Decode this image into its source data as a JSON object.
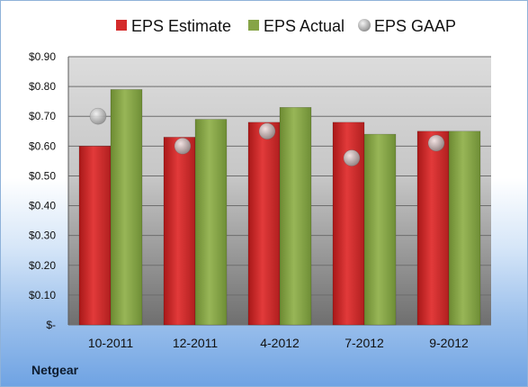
{
  "company": "Netgear",
  "chart_data": {
    "type": "bar",
    "title": "",
    "xlabel": "",
    "ylabel": "",
    "categories": [
      "10-2011",
      "12-2011",
      "4-2012",
      "7-2012",
      "9-2012"
    ],
    "series": [
      {
        "name": "EPS Estimate",
        "kind": "bar",
        "color": "#d42b2b",
        "values": [
          0.6,
          0.63,
          0.68,
          0.68,
          0.65
        ]
      },
      {
        "name": "EPS Actual",
        "kind": "bar",
        "color": "#86a447",
        "values": [
          0.79,
          0.69,
          0.73,
          0.64,
          0.65
        ]
      },
      {
        "name": "EPS GAAP",
        "kind": "marker",
        "color": "#b8b8b8",
        "values": [
          0.7,
          0.6,
          0.65,
          0.56,
          0.61
        ]
      }
    ],
    "ylim": [
      0,
      0.9
    ],
    "yticks": [
      0,
      0.1,
      0.2,
      0.3,
      0.4,
      0.5,
      0.6,
      0.7,
      0.8,
      0.9
    ],
    "ytick_labels": [
      "$-",
      "$0.10",
      "$0.20",
      "$0.30",
      "$0.40",
      "$0.50",
      "$0.60",
      "$0.70",
      "$0.80",
      "$0.90"
    ],
    "grid": true,
    "legend": "top"
  }
}
